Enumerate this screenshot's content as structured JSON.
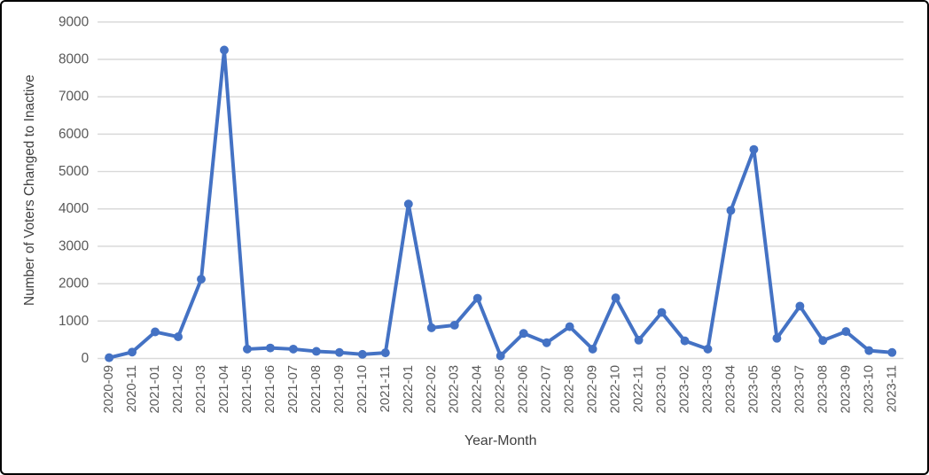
{
  "chart_data": {
    "type": "line",
    "title": "",
    "xlabel": "Year-Month",
    "ylabel": "Number of Voters Changed to Inactive",
    "categories": [
      "2020-09",
      "2020-11",
      "2021-01",
      "2021-02",
      "2021-03",
      "2021-04",
      "2021-05",
      "2021-06",
      "2021-07",
      "2021-08",
      "2021-09",
      "2021-10",
      "2021-11",
      "2022-01",
      "2022-02",
      "2022-03",
      "2022-04",
      "2022-05",
      "2022-06",
      "2022-07",
      "2022-08",
      "2022-09",
      "2022-10",
      "2022-11",
      "2023-01",
      "2023-02",
      "2023-03",
      "2023-04",
      "2023-05",
      "2023-06",
      "2023-07",
      "2023-08",
      "2023-09",
      "2023-10",
      "2023-11"
    ],
    "values": [
      20,
      170,
      710,
      580,
      2120,
      8250,
      250,
      280,
      250,
      190,
      160,
      110,
      150,
      4130,
      820,
      890,
      1610,
      70,
      670,
      420,
      850,
      250,
      1620,
      490,
      1230,
      470,
      250,
      3960,
      5590,
      540,
      1400,
      480,
      720,
      210,
      160
    ],
    "yticks": [
      0,
      1000,
      2000,
      3000,
      4000,
      5000,
      6000,
      7000,
      8000,
      9000
    ],
    "ylim": [
      0,
      9000
    ],
    "grid": "horizontal",
    "legend": "none",
    "colors": {
      "line": "#4472C4",
      "marker": "#4472C4",
      "gridline": "#D9D9D9",
      "tick_text": "#595959",
      "axis_title_text": "#404040",
      "frame_border": "#000000",
      "background": "#FFFFFF"
    }
  }
}
